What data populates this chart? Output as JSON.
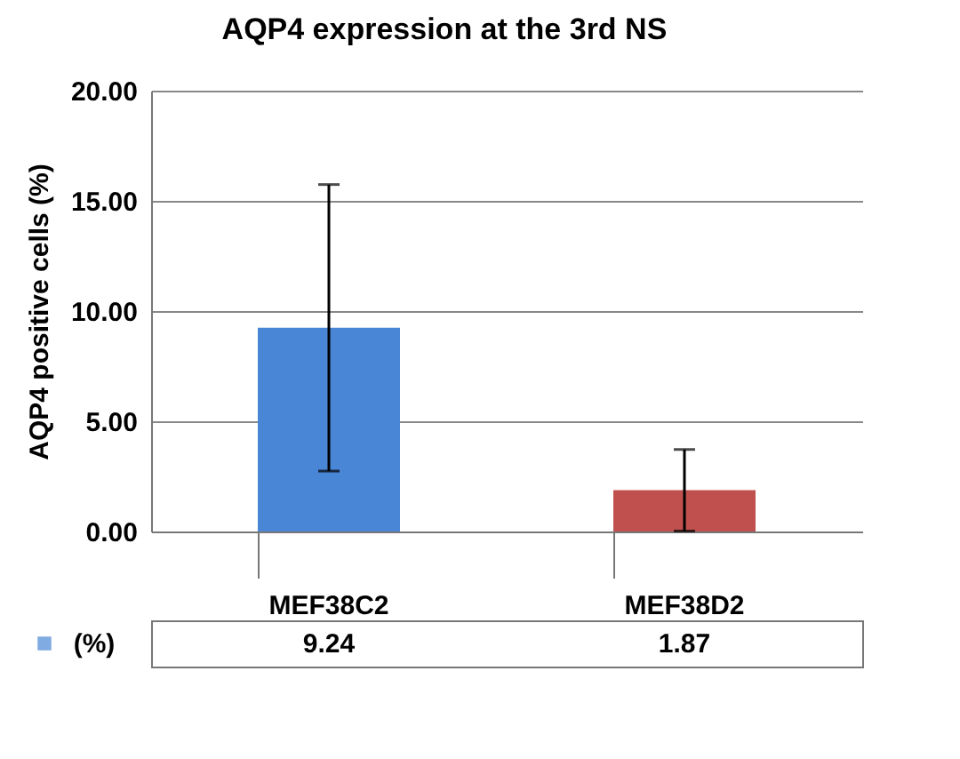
{
  "chart_data": {
    "type": "bar",
    "title": "AQP4 expression at the 3rd NS",
    "ylabel": "AQP4 positive cells (%)",
    "categories": [
      "MEF38C2",
      "MEF38D2"
    ],
    "series": [
      {
        "name": "(%)",
        "color": "#4a86d6",
        "colors": [
          "#4a86d6",
          "#c0504d"
        ],
        "values": [
          9.24,
          1.87
        ],
        "errors": [
          6.5,
          1.85
        ]
      }
    ],
    "ylim": [
      0,
      20
    ],
    "yticks": [
      {
        "value": 0,
        "label": "0.00"
      },
      {
        "value": 5,
        "label": "5.00"
      },
      {
        "value": 10,
        "label": "10.00"
      },
      {
        "value": 15,
        "label": "15.00"
      },
      {
        "value": 20,
        "label": "20.00"
      }
    ],
    "grid": "y",
    "data_labels": true,
    "legend": "bottom left"
  }
}
